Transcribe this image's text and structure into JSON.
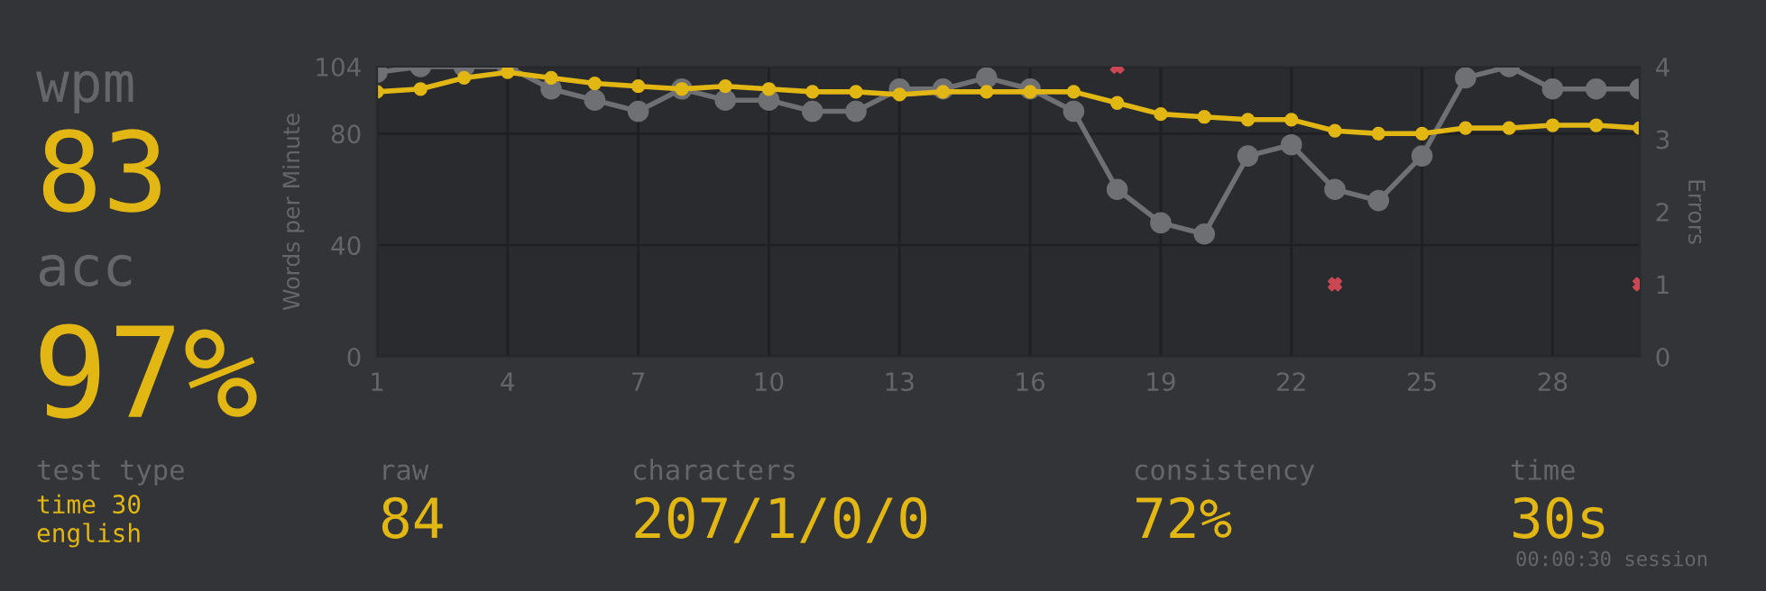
{
  "chart_data": [
    {
      "type": "line",
      "xlabel": null,
      "ylabel": "Words per Minute",
      "y2label": "Errors",
      "x": [
        1,
        2,
        3,
        4,
        5,
        6,
        7,
        8,
        9,
        10,
        11,
        12,
        13,
        14,
        15,
        16,
        17,
        18,
        19,
        20,
        21,
        22,
        23,
        24,
        25,
        26,
        27,
        28,
        29,
        30
      ],
      "series": [
        {
          "color": "#6f7073",
          "marker": "circle",
          "values": [
            102,
            104,
            104,
            104,
            96,
            92,
            88,
            96,
            92,
            92,
            88,
            88,
            96,
            96,
            100,
            96,
            88,
            60,
            48,
            44,
            72,
            76,
            60,
            56,
            72,
            100,
            104,
            96,
            96,
            96
          ]
        },
        {
          "color": "#e2b714",
          "marker": "circle",
          "values": [
            95,
            96,
            100,
            102,
            100,
            98,
            97,
            96,
            97,
            96,
            95,
            95,
            94,
            95,
            95,
            95,
            95,
            91,
            87,
            86,
            85,
            85,
            81,
            80,
            80,
            82,
            82,
            83,
            83,
            82
          ]
        },
        {
          "type": "scatter",
          "axis": "y2",
          "color": "#ca4754",
          "marker": "cross",
          "values": [
            null,
            null,
            null,
            null,
            null,
            null,
            null,
            null,
            null,
            null,
            null,
            null,
            null,
            null,
            null,
            null,
            null,
            4,
            null,
            null,
            null,
            null,
            1,
            null,
            null,
            null,
            null,
            null,
            null,
            1
          ]
        }
      ],
      "xlim": [
        1,
        30
      ],
      "xticks": [
        1,
        4,
        7,
        10,
        13,
        16,
        19,
        22,
        25,
        28
      ],
      "ylim": [
        0,
        104
      ],
      "yticks": [
        0,
        40,
        80,
        104
      ],
      "y2lim": [
        0,
        4
      ],
      "y2ticks": [
        0,
        1,
        2,
        3,
        4
      ],
      "grid": true,
      "legend": false
    },
    {
      "type": "other",
      "annotations": [
        "wpm",
        "83",
        "acc",
        "97%",
        "test type",
        "time 30",
        "english",
        "raw",
        "84",
        "characters",
        "207/1/0/0",
        "consistency",
        "72%",
        "time",
        "30s",
        "00:00:30 session"
      ]
    }
  ]
}
